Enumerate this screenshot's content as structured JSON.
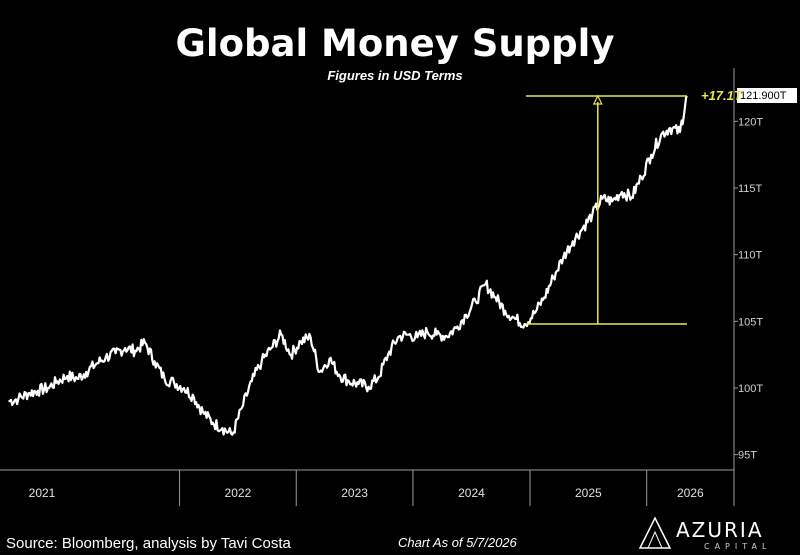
{
  "chart_data": {
    "type": "line",
    "title": "Global Money Supply",
    "subtitle": "Figures in USD Terms",
    "xlabel": "",
    "ylabel": "",
    "x_range": [
      "2020-07-01",
      "2026-10-01"
    ],
    "ylim": [
      94,
      124
    ],
    "y_ticks": [
      "95T",
      "100T",
      "105T",
      "110T",
      "115T",
      "120T"
    ],
    "y_tick_values": [
      95,
      100,
      105,
      110,
      115,
      120
    ],
    "x_tick_labels": [
      "2021",
      "2022",
      "2023",
      "2024",
      "2025",
      "2026"
    ],
    "grid": false,
    "series": [
      {
        "name": "",
        "color": "#ffffff",
        "x": [
          "2020-07-15",
          "2020-08-15",
          "2020-09-15",
          "2020-10-15",
          "2020-11-15",
          "2020-12-15",
          "2021-01-15",
          "2021-02-15",
          "2021-03-15",
          "2021-04-15",
          "2021-05-15",
          "2021-06-15",
          "2021-07-15",
          "2021-08-15",
          "2021-09-15",
          "2021-10-15",
          "2021-11-15",
          "2021-12-15",
          "2022-01-15",
          "2022-02-15",
          "2022-03-15",
          "2022-04-15",
          "2022-05-15",
          "2022-06-15",
          "2022-07-15",
          "2022-08-15",
          "2022-09-15",
          "2022-10-15",
          "2022-11-15",
          "2022-12-15",
          "2023-01-15",
          "2023-02-15",
          "2023-03-15",
          "2023-04-15",
          "2023-05-15",
          "2023-06-15",
          "2023-07-15",
          "2023-08-15",
          "2023-09-15",
          "2023-10-15",
          "2023-11-15",
          "2023-12-15",
          "2024-01-15",
          "2024-02-15",
          "2024-03-15",
          "2024-04-15",
          "2024-05-15",
          "2024-06-15",
          "2024-07-15",
          "2024-08-15",
          "2024-09-15",
          "2024-10-15",
          "2024-11-15",
          "2024-12-15",
          "2025-01-15",
          "2025-02-15",
          "2025-03-15",
          "2025-04-15",
          "2025-05-15",
          "2025-06-15",
          "2025-07-15",
          "2025-08-15",
          "2025-09-15",
          "2025-10-15",
          "2025-11-15",
          "2025-12-15",
          "2026-01-15",
          "2026-02-15",
          "2026-03-15",
          "2026-04-15",
          "2026-05-07"
        ],
        "values": [
          99.0,
          99.2,
          99.6,
          99.8,
          100.0,
          100.5,
          100.9,
          100.7,
          101.2,
          101.8,
          102.3,
          102.6,
          103.0,
          102.8,
          103.4,
          102.0,
          100.7,
          100.4,
          100.0,
          99.3,
          98.2,
          97.4,
          97.0,
          96.5,
          98.5,
          100.5,
          102.0,
          103.0,
          104.0,
          102.5,
          103.5,
          103.8,
          101.2,
          102.2,
          101.0,
          100.5,
          100.3,
          100.1,
          100.8,
          102.5,
          103.8,
          104.0,
          103.8,
          104.2,
          104.0,
          103.9,
          104.5,
          105.5,
          106.5,
          107.8,
          106.8,
          105.8,
          105.2,
          104.8,
          105.6,
          106.8,
          108.3,
          109.8,
          111.0,
          112.0,
          113.0,
          114.2,
          114.0,
          114.7,
          114.3,
          115.8,
          117.5,
          119.0,
          119.5,
          119.2,
          121.9
        ]
      }
    ],
    "last_value_label": "121.900T",
    "annotation": {
      "text": "+17.1T",
      "color": "#e8e84a",
      "from_value": 104.8,
      "to_value": 121.9,
      "from_date": "2025-01-01",
      "to_date": "2026-05-07",
      "arrow_date": "2025-08-01"
    }
  },
  "footer": {
    "source": "Source: Bloomberg, analysis by Tavi Costa",
    "chart_as_of": "Chart As of 5/7/2026",
    "brand_name": "AZURIA",
    "brand_sub": "CAPITAL"
  }
}
